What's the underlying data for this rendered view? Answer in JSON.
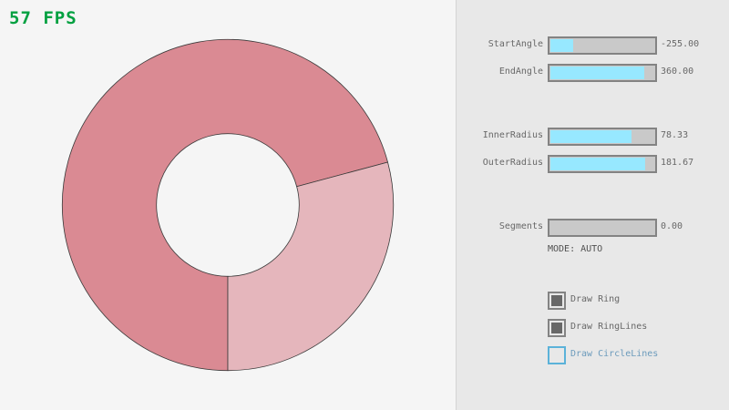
{
  "fps_label": "57 FPS",
  "ring": {
    "center_note": "",
    "colors": {
      "double_coverage": "#da8a93",
      "single_coverage": "#e5b6bc",
      "outline": "#3a3a3a"
    }
  },
  "controls": {
    "sliders": [
      {
        "label": "StartAngle",
        "value": "-255.00",
        "fraction": 0.217
      },
      {
        "label": "EndAngle",
        "value": "360.00",
        "fraction": 0.9
      },
      {
        "label": "InnerRadius",
        "value": "78.33",
        "fraction": 0.783
      },
      {
        "label": "OuterRadius",
        "value": "181.67",
        "fraction": 0.908
      },
      {
        "label": "Segments",
        "value": "0.00",
        "fraction": 0.0
      }
    ],
    "mode": "MODE: AUTO",
    "checkboxes": [
      {
        "label": "Draw Ring",
        "checked": true
      },
      {
        "label": "Draw RingLines",
        "checked": true
      },
      {
        "label": "Draw CircleLines",
        "checked": false
      }
    ],
    "fill_color": "#97e8ff"
  }
}
